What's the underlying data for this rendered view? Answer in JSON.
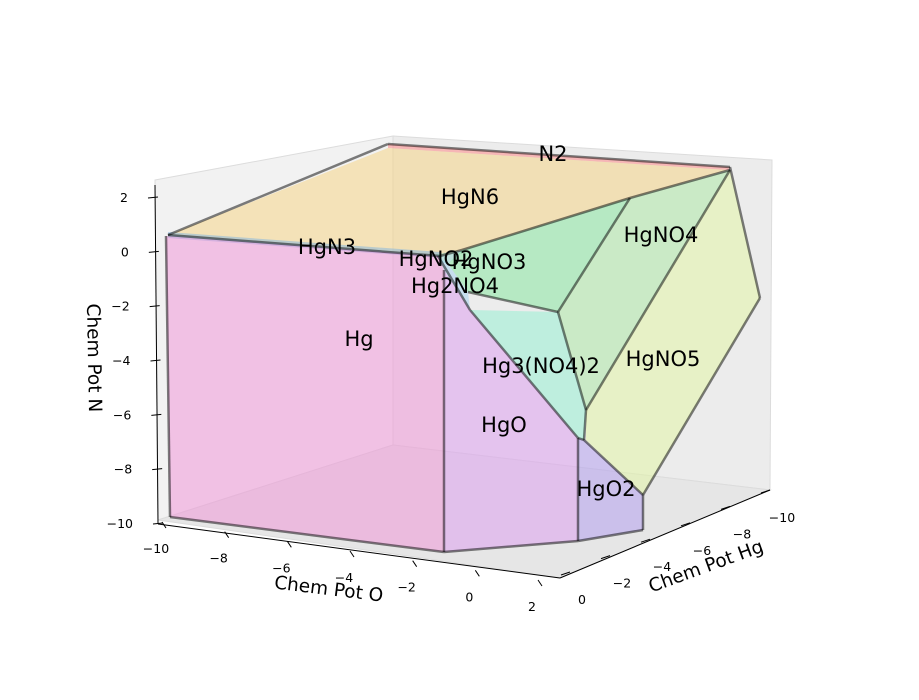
{
  "chart_data": {
    "type": "3d-polyhedral-phase-diagram",
    "title": "",
    "axes": {
      "x": {
        "label": "Chem Pot Hg",
        "range": [
          -10,
          0
        ],
        "ticks": [
          -10,
          -8,
          -6,
          -4,
          -2,
          0
        ]
      },
      "y": {
        "label": "Chem Pot O",
        "range": [
          -10,
          2
        ],
        "ticks": [
          -10,
          -8,
          -6,
          -4,
          -2,
          0,
          2
        ]
      },
      "z": {
        "label": "Chem Pot N",
        "range": [
          -10,
          2
        ],
        "ticks": [
          -10,
          -8,
          -6,
          -4,
          -2,
          0,
          2
        ]
      }
    },
    "regions": [
      {
        "name": "N2",
        "color": "#ff7f7f"
      },
      {
        "name": "HgN6",
        "color": "#f5d27e"
      },
      {
        "name": "HgNO4",
        "color": "#a8e8a0"
      },
      {
        "name": "HgN3",
        "color": "#7fb3e0"
      },
      {
        "name": "HgNO2",
        "color": "#8fd6c8"
      },
      {
        "name": "HgNO3",
        "color": "#7fe69a"
      },
      {
        "name": "Hg2NO4",
        "color": "#9fd0f0"
      },
      {
        "name": "Hg",
        "color": "#f08fd6"
      },
      {
        "name": "Hg3(NO4)2",
        "color": "#8ff0d0"
      },
      {
        "name": "HgNO5",
        "color": "#e2f5a0"
      },
      {
        "name": "HgO",
        "color": "#dc9af0"
      },
      {
        "name": "HgO2",
        "color": "#b09af0"
      }
    ],
    "grid": false,
    "legend": "none"
  }
}
